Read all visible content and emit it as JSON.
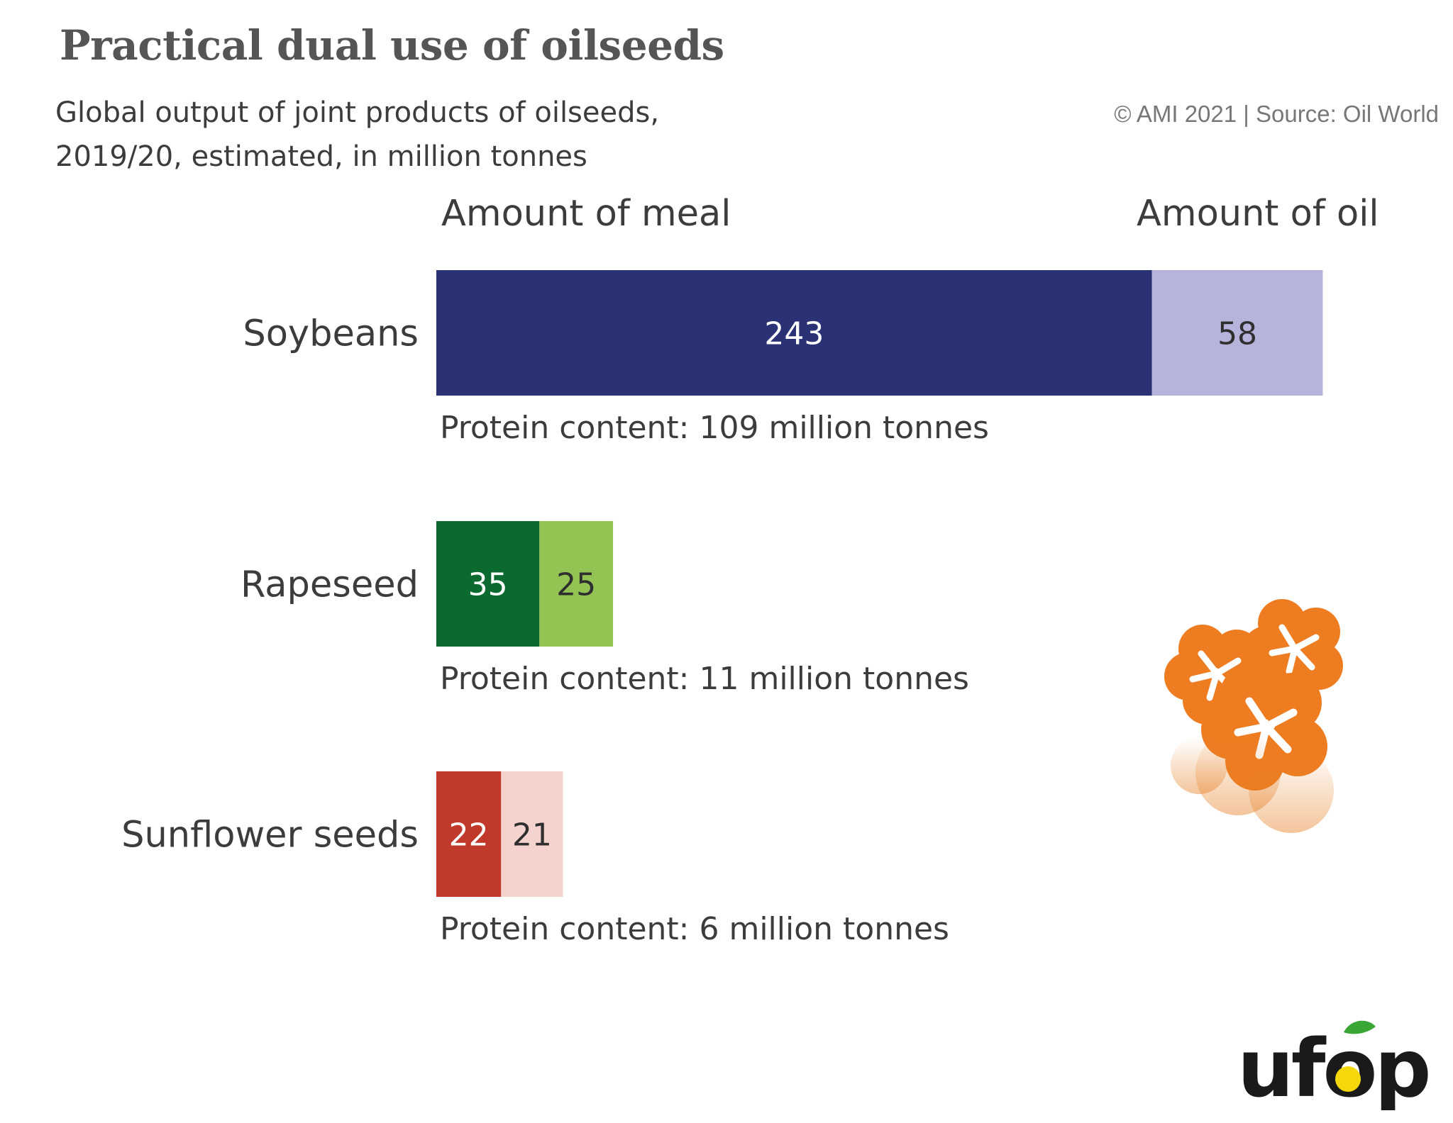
{
  "title": "Practical dual use of oilseeds",
  "subtitle": "Global output of joint products of oilseeds, 2019/20, estimated, in million tonnes",
  "source": "© AMI 2021 | Source: Oil World",
  "logo_text": "ufop",
  "flower_icon": "orange-blossom-icon",
  "chart_data": {
    "type": "bar",
    "orientation": "horizontal",
    "stacked": true,
    "column_headers": [
      "Amount of meal",
      "Amount of oil"
    ],
    "categories": [
      "Soybeans",
      "Rapeseed",
      "Sunflower seeds"
    ],
    "series": [
      {
        "name": "Amount of meal",
        "values": [
          243,
          35,
          22
        ],
        "colors": [
          "#2b3175",
          "#0b6a30",
          "#c0392b"
        ],
        "label_colors": [
          "#ffffff",
          "#ffffff",
          "#ffffff"
        ]
      },
      {
        "name": "Amount of oil",
        "values": [
          58,
          25,
          21
        ],
        "colors": [
          "#b6b4db",
          "#93c453",
          "#f4d3cf"
        ],
        "label_colors": [
          "#2f2f2f",
          "#2f2f2f",
          "#2f2f2f"
        ]
      }
    ],
    "annotations": [
      "Protein content: 109 million tonnes",
      "Protein content: 11 million tonnes",
      "Protein content: 6 million tonnes"
    ],
    "grid": false,
    "axes_visible": false
  }
}
